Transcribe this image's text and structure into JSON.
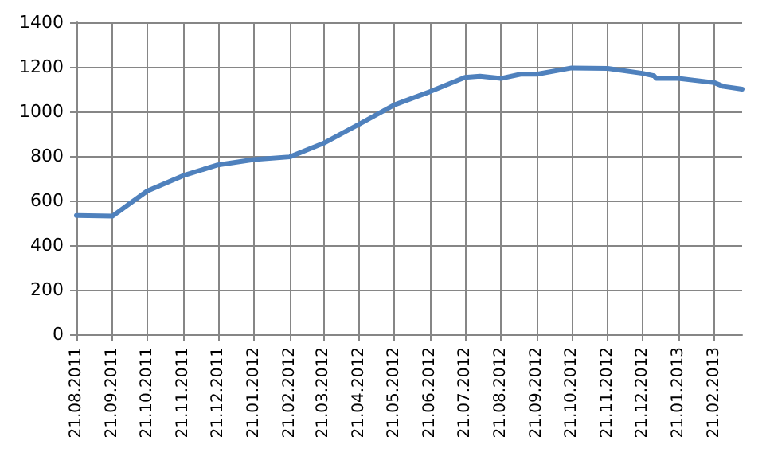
{
  "chart_data": {
    "type": "line",
    "x": [
      "2011-08-21",
      "2011-09-21",
      "2011-10-21",
      "2011-11-21",
      "2011-12-21",
      "2012-01-21",
      "2012-02-21",
      "2012-03-21",
      "2012-04-21",
      "2012-05-21",
      "2012-06-21",
      "2012-07-21",
      "2012-08-03",
      "2012-08-21",
      "2012-09-07",
      "2012-09-21",
      "2012-10-21",
      "2012-11-21",
      "2012-12-21",
      "2012-12-31",
      "2013-01-02",
      "2013-01-21",
      "2013-02-21",
      "2013-03-01",
      "2013-03-17"
    ],
    "series": [
      {
        "color": "#4f81bd",
        "values": [
          533,
          530,
          643,
          712,
          760,
          784,
          796,
          857,
          943,
          1029,
          1089,
          1153,
          1158,
          1148,
          1167,
          1167,
          1195,
          1193,
          1171,
          1160,
          1148,
          1148,
          1129,
          1112,
          1100
        ]
      }
    ],
    "xlim": [
      "2011-08-21",
      "2013-03-17"
    ],
    "xticks": [
      {
        "value": "2011-08-21",
        "label": "21.08.2011"
      },
      {
        "value": "2011-09-21",
        "label": "21.09.2011"
      },
      {
        "value": "2011-10-21",
        "label": "21.10.2011"
      },
      {
        "value": "2011-11-21",
        "label": "21.11.2011"
      },
      {
        "value": "2011-12-21",
        "label": "21.12.2011"
      },
      {
        "value": "2012-01-21",
        "label": "21.01.2012"
      },
      {
        "value": "2012-02-21",
        "label": "21.02.2012"
      },
      {
        "value": "2012-03-21",
        "label": "21.03.2012"
      },
      {
        "value": "2012-04-21",
        "label": "21.04.2012"
      },
      {
        "value": "2012-05-21",
        "label": "21.05.2012"
      },
      {
        "value": "2012-06-21",
        "label": "21.06.2012"
      },
      {
        "value": "2012-07-21",
        "label": "21.07.2012"
      },
      {
        "value": "2012-08-21",
        "label": "21.08.2012"
      },
      {
        "value": "2012-09-21",
        "label": "21.09.2012"
      },
      {
        "value": "2012-10-21",
        "label": "21.10.2012"
      },
      {
        "value": "2012-11-21",
        "label": "21.11.2012"
      },
      {
        "value": "2012-12-21",
        "label": "21.12.2012"
      },
      {
        "value": "2013-01-21",
        "label": "21.01.2013"
      },
      {
        "value": "2013-02-21",
        "label": "21.02.2013"
      }
    ],
    "ylim": [
      0,
      1400
    ],
    "yticks": [
      0,
      200,
      400,
      600,
      800,
      1000,
      1200,
      1400
    ],
    "grid": true
  }
}
